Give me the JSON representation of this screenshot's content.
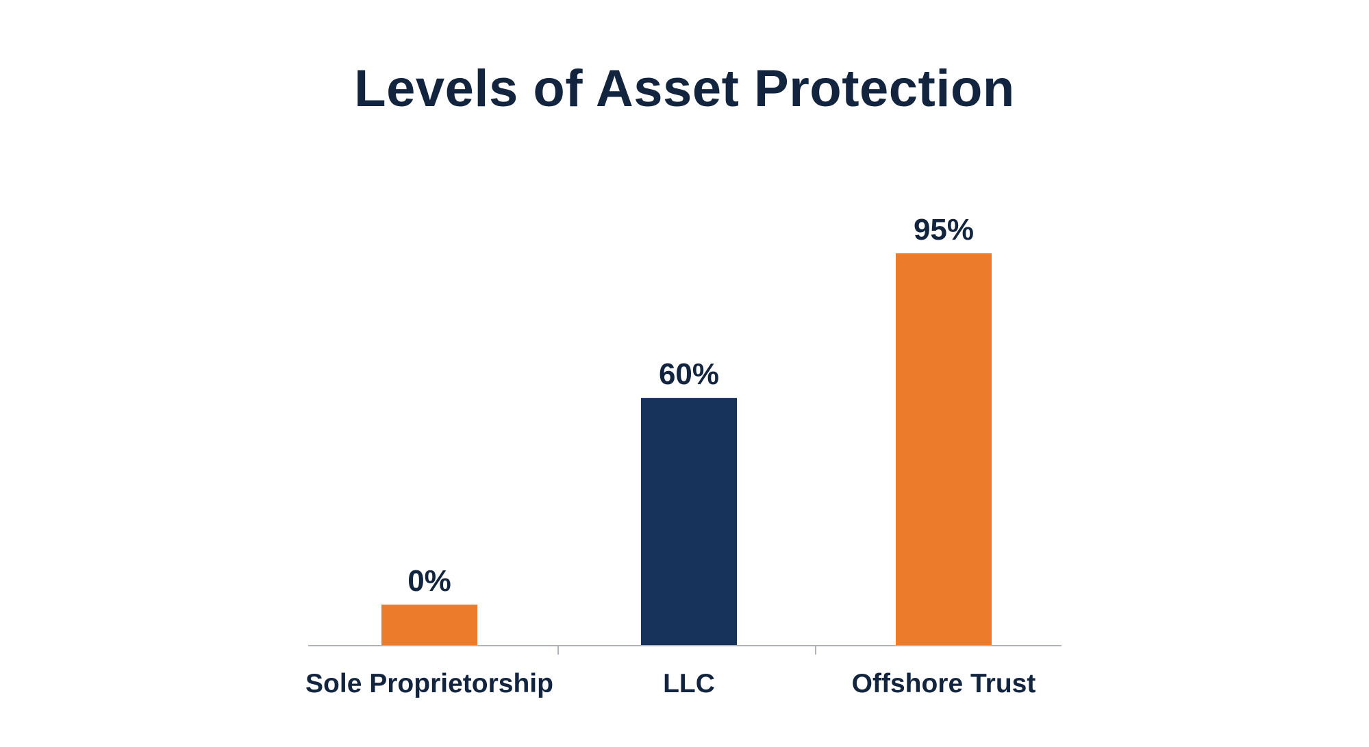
{
  "chart_data": {
    "type": "bar",
    "title": "Levels of Asset Protection",
    "xlabel": "",
    "ylabel": "",
    "categories": [
      "Sole Proprietorship",
      "LLC",
      "Offshore Trust"
    ],
    "values": [
      0,
      60,
      95
    ],
    "value_labels": [
      "0%",
      "60%",
      "95%"
    ],
    "bar_colors": [
      "#ec7b2b",
      "#17335c",
      "#ec7b2b"
    ],
    "ylim": [
      0,
      100
    ],
    "grid": false,
    "legend": "none",
    "axis_color": "#b0b4ba",
    "text_color": "#13243f"
  }
}
